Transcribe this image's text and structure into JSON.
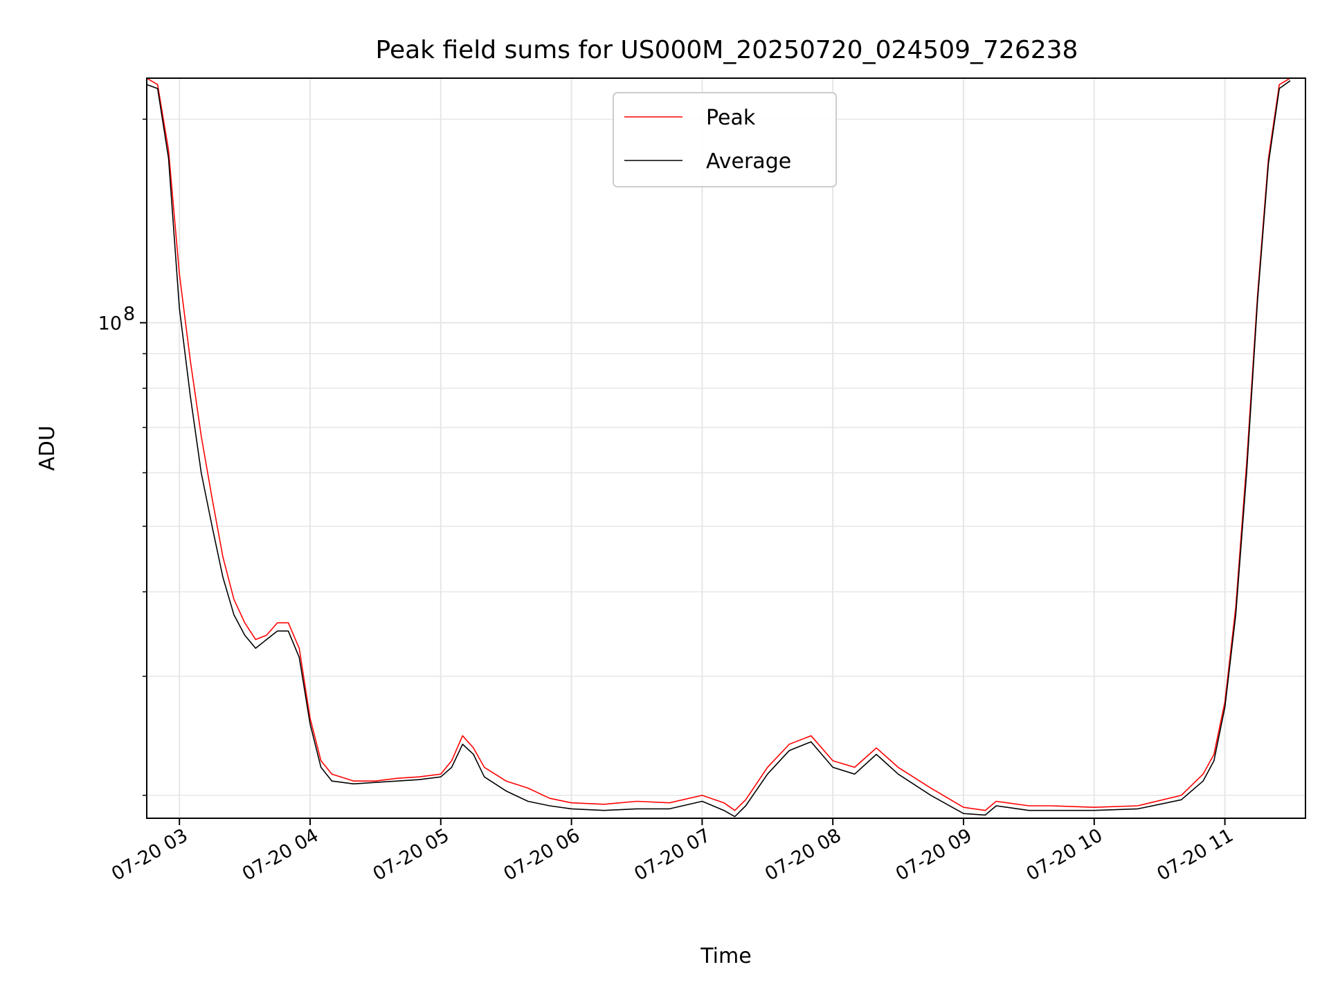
{
  "chart_data": {
    "type": "line",
    "title": "Peak field sums for US000M_20250720_024509_726238",
    "xlabel": "Time",
    "ylabel": "ADU",
    "y_scale": "log",
    "ylim": [
      18500000,
      230000000
    ],
    "xlim": [
      "2025-07-20 02:45",
      "2025-07-20 11:37"
    ],
    "x_ticks": [
      {
        "at": "2025-07-20 03:00",
        "label": "07-20 03"
      },
      {
        "at": "2025-07-20 04:00",
        "label": "07-20 04"
      },
      {
        "at": "2025-07-20 05:00",
        "label": "07-20 05"
      },
      {
        "at": "2025-07-20 06:00",
        "label": "07-20 06"
      },
      {
        "at": "2025-07-20 07:00",
        "label": "07-20 07"
      },
      {
        "at": "2025-07-20 08:00",
        "label": "07-20 08"
      },
      {
        "at": "2025-07-20 09:00",
        "label": "07-20 09"
      },
      {
        "at": "2025-07-20 10:00",
        "label": "07-20 10"
      },
      {
        "at": "2025-07-20 11:00",
        "label": "07-20 11"
      }
    ],
    "y_ticks": [
      {
        "value": 100000000,
        "base": "10",
        "exp": "8"
      }
    ],
    "y_minor_ticks": [
      20000000,
      30000000,
      40000000,
      50000000,
      60000000,
      70000000,
      80000000,
      90000000,
      200000000
    ],
    "grid": true,
    "legend_position": "upper-center",
    "series": [
      {
        "name": "Peak",
        "color": "#ff0000",
        "x": [
          "2025-07-20 02:45",
          "2025-07-20 02:50",
          "2025-07-20 02:55",
          "2025-07-20 03:00",
          "2025-07-20 03:05",
          "2025-07-20 03:10",
          "2025-07-20 03:15",
          "2025-07-20 03:20",
          "2025-07-20 03:25",
          "2025-07-20 03:30",
          "2025-07-20 03:35",
          "2025-07-20 03:40",
          "2025-07-20 03:45",
          "2025-07-20 03:50",
          "2025-07-20 03:55",
          "2025-07-20 04:00",
          "2025-07-20 04:05",
          "2025-07-20 04:10",
          "2025-07-20 04:20",
          "2025-07-20 04:30",
          "2025-07-20 04:40",
          "2025-07-20 04:50",
          "2025-07-20 05:00",
          "2025-07-20 05:05",
          "2025-07-20 05:10",
          "2025-07-20 05:15",
          "2025-07-20 05:20",
          "2025-07-20 05:30",
          "2025-07-20 05:40",
          "2025-07-20 05:50",
          "2025-07-20 06:00",
          "2025-07-20 06:15",
          "2025-07-20 06:30",
          "2025-07-20 06:45",
          "2025-07-20 07:00",
          "2025-07-20 07:10",
          "2025-07-20 07:15",
          "2025-07-20 07:20",
          "2025-07-20 07:30",
          "2025-07-20 07:40",
          "2025-07-20 07:50",
          "2025-07-20 08:00",
          "2025-07-20 08:10",
          "2025-07-20 08:20",
          "2025-07-20 08:30",
          "2025-07-20 08:45",
          "2025-07-20 09:00",
          "2025-07-20 09:10",
          "2025-07-20 09:15",
          "2025-07-20 09:20",
          "2025-07-20 09:30",
          "2025-07-20 09:40",
          "2025-07-20 10:00",
          "2025-07-20 10:20",
          "2025-07-20 10:40",
          "2025-07-20 10:50",
          "2025-07-20 10:55",
          "2025-07-20 11:00",
          "2025-07-20 11:05",
          "2025-07-20 11:10",
          "2025-07-20 11:15",
          "2025-07-20 11:20",
          "2025-07-20 11:25",
          "2025-07-20 11:30"
        ],
        "values": [
          230000000,
          225000000,
          180000000,
          118000000,
          88000000,
          68000000,
          55000000,
          45000000,
          39000000,
          36000000,
          34000000,
          34500000,
          36000000,
          36000000,
          33000000,
          26000000,
          22500000,
          21500000,
          21000000,
          21000000,
          21200000,
          21300000,
          21500000,
          22500000,
          24500000,
          23500000,
          22000000,
          21000000,
          20500000,
          19800000,
          19500000,
          19400000,
          19600000,
          19500000,
          20000000,
          19500000,
          19000000,
          19700000,
          22000000,
          23800000,
          24500000,
          22500000,
          22000000,
          23500000,
          22000000,
          20500000,
          19200000,
          19000000,
          19600000,
          19500000,
          19300000,
          19300000,
          19200000,
          19300000,
          20000000,
          21500000,
          23000000,
          27500000,
          38000000,
          62000000,
          110000000,
          175000000,
          225000000,
          230000000
        ]
      },
      {
        "name": "Average",
        "color": "#000000",
        "x": [
          "2025-07-20 02:45",
          "2025-07-20 02:50",
          "2025-07-20 02:55",
          "2025-07-20 03:00",
          "2025-07-20 03:05",
          "2025-07-20 03:10",
          "2025-07-20 03:15",
          "2025-07-20 03:20",
          "2025-07-20 03:25",
          "2025-07-20 03:30",
          "2025-07-20 03:35",
          "2025-07-20 03:40",
          "2025-07-20 03:45",
          "2025-07-20 03:50",
          "2025-07-20 03:55",
          "2025-07-20 04:00",
          "2025-07-20 04:05",
          "2025-07-20 04:10",
          "2025-07-20 04:20",
          "2025-07-20 04:30",
          "2025-07-20 04:40",
          "2025-07-20 04:50",
          "2025-07-20 05:00",
          "2025-07-20 05:05",
          "2025-07-20 05:10",
          "2025-07-20 05:15",
          "2025-07-20 05:20",
          "2025-07-20 05:30",
          "2025-07-20 05:40",
          "2025-07-20 05:50",
          "2025-07-20 06:00",
          "2025-07-20 06:15",
          "2025-07-20 06:30",
          "2025-07-20 06:45",
          "2025-07-20 07:00",
          "2025-07-20 07:10",
          "2025-07-20 07:15",
          "2025-07-20 07:20",
          "2025-07-20 07:30",
          "2025-07-20 07:40",
          "2025-07-20 07:50",
          "2025-07-20 08:00",
          "2025-07-20 08:10",
          "2025-07-20 08:20",
          "2025-07-20 08:30",
          "2025-07-20 08:45",
          "2025-07-20 09:00",
          "2025-07-20 09:10",
          "2025-07-20 09:15",
          "2025-07-20 09:20",
          "2025-07-20 09:30",
          "2025-07-20 09:40",
          "2025-07-20 10:00",
          "2025-07-20 10:20",
          "2025-07-20 10:40",
          "2025-07-20 10:50",
          "2025-07-20 10:55",
          "2025-07-20 11:00",
          "2025-07-20 11:05",
          "2025-07-20 11:10",
          "2025-07-20 11:15",
          "2025-07-20 11:20",
          "2025-07-20 11:25",
          "2025-07-20 11:30"
        ],
        "values": [
          225000000,
          222000000,
          175000000,
          105000000,
          78000000,
          60000000,
          50000000,
          42000000,
          37000000,
          34500000,
          33000000,
          34000000,
          35000000,
          35000000,
          32000000,
          25500000,
          22000000,
          21000000,
          20800000,
          20900000,
          21000000,
          21100000,
          21300000,
          22000000,
          23800000,
          23000000,
          21300000,
          20300000,
          19600000,
          19300000,
          19100000,
          19000000,
          19100000,
          19100000,
          19600000,
          19000000,
          18600000,
          19300000,
          21500000,
          23300000,
          24000000,
          22000000,
          21500000,
          23000000,
          21500000,
          20000000,
          18800000,
          18700000,
          19300000,
          19200000,
          19000000,
          19000000,
          19000000,
          19100000,
          19700000,
          21000000,
          22500000,
          27000000,
          37000000,
          60000000,
          108000000,
          172000000,
          222000000,
          228000000
        ]
      }
    ]
  }
}
